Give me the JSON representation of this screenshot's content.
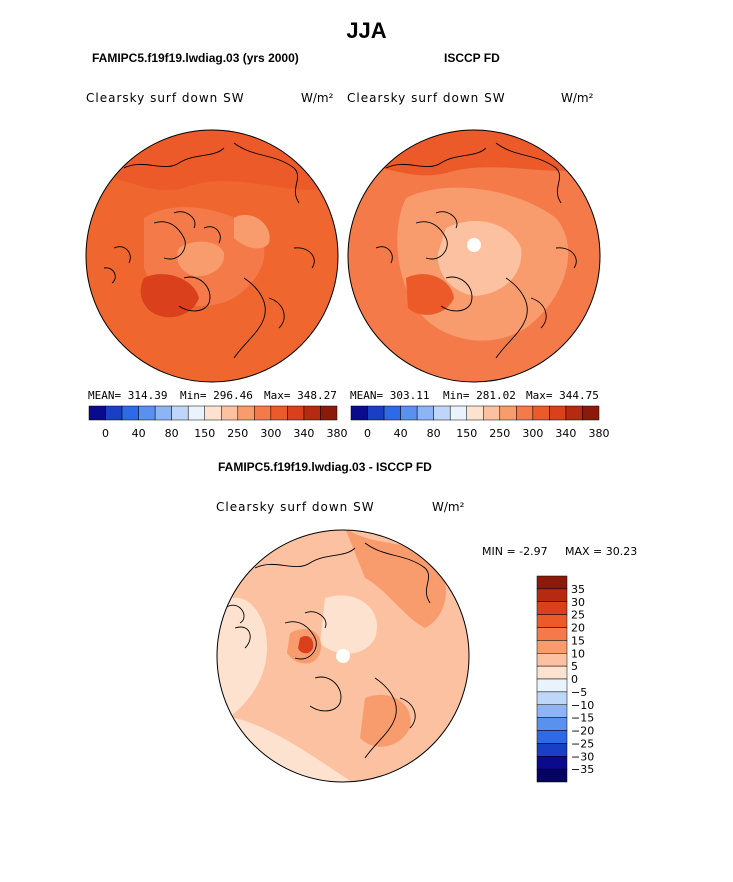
{
  "page": {
    "season": "JJA",
    "model_title": "FAMIPC5.f19f19.lwdiag.03 (yrs 2000)",
    "obs_title": "ISCCP FD",
    "diff_title": "FAMIPC5.f19f19.lwdiag.03 - ISCCP FD"
  },
  "chart_data": [
    {
      "type": "heatmap",
      "projection": "north-polar-stereographic",
      "title": "FAMIPC5.f19f19.lwdiag.03 (yrs 2000)",
      "field": "Clearsky surf down SW",
      "units": "W/m²",
      "stats": {
        "mean": "MEAN= 314.39",
        "min": "Min= 296.46",
        "max": "Max= 348.27"
      },
      "colorbar": {
        "tick_labels": [
          "0",
          "40",
          "80",
          "150",
          "250",
          "300",
          "340",
          "380"
        ],
        "colors": [
          "#0a0a8c",
          "#1b3fc4",
          "#2e6ae8",
          "#5a90ee",
          "#8fb4f3",
          "#bed6f8",
          "#e9f3fc",
          "#fde2cf",
          "#fbc1a0",
          "#f89c6e",
          "#f47a49",
          "#ec5a2a",
          "#d9401b",
          "#b72a12",
          "#8c1a0a"
        ]
      }
    },
    {
      "type": "heatmap",
      "projection": "north-polar-stereographic",
      "title": "ISCCP FD",
      "field": "Clearsky surf down SW",
      "units": "W/m²",
      "stats": {
        "mean": "MEAN= 303.11",
        "min": "Min= 281.02",
        "max": "Max= 344.75"
      },
      "colorbar": {
        "tick_labels": [
          "0",
          "40",
          "80",
          "150",
          "250",
          "300",
          "340",
          "380"
        ],
        "colors": [
          "#0a0a8c",
          "#1b3fc4",
          "#2e6ae8",
          "#5a90ee",
          "#8fb4f3",
          "#bed6f8",
          "#e9f3fc",
          "#fde2cf",
          "#fbc1a0",
          "#f89c6e",
          "#f47a49",
          "#ec5a2a",
          "#d9401b",
          "#b72a12",
          "#8c1a0a"
        ]
      }
    },
    {
      "type": "heatmap",
      "projection": "north-polar-stereographic",
      "title": "FAMIPC5.f19f19.lwdiag.03 - ISCCP FD",
      "field": "Clearsky surf down SW",
      "units": "W/m²",
      "stats": {
        "min": "MIN = -2.97",
        "max": "MAX = 30.23"
      },
      "colorbar": {
        "tick_labels": [
          "35",
          "30",
          "25",
          "20",
          "15",
          "10",
          "5",
          "0",
          "−5",
          "−10",
          "−15",
          "−20",
          "−25",
          "−30",
          "−35"
        ],
        "colors": [
          "#8c1a0a",
          "#b72a12",
          "#d9401b",
          "#ec5a2a",
          "#f47a49",
          "#f89c6e",
          "#fbc1a0",
          "#fde2cf",
          "#e9f3fc",
          "#bed6f8",
          "#8fb4f3",
          "#5a90ee",
          "#2e6ae8",
          "#1b3fc4",
          "#0a0a8c",
          "#050560"
        ]
      }
    }
  ]
}
